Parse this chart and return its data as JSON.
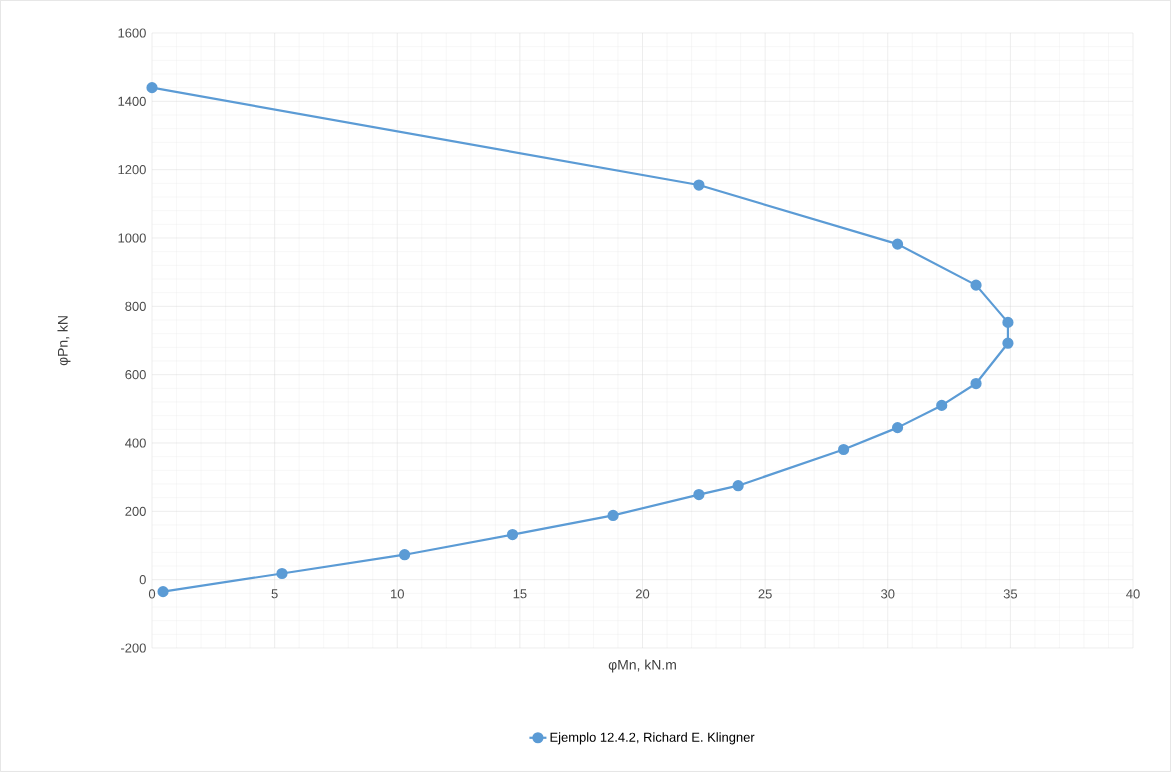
{
  "chart_data": {
    "type": "line",
    "xlabel": "φMn,  kN.m",
    "ylabel": "φPn, kN",
    "x": [
      0,
      22.3,
      30.4,
      33.6,
      34.9,
      34.9,
      33.6,
      32.2,
      30.4,
      28.2,
      23.9,
      22.3,
      18.8,
      14.7,
      10.3,
      5.3,
      0.45
    ],
    "series": [
      {
        "name": "Ejemplo 12.4.2, Richard E. Klingner",
        "color": "#5b9bd5",
        "values": [
          1440,
          1155,
          982,
          862,
          753,
          692,
          574,
          510,
          445,
          381,
          275,
          249,
          188,
          132,
          73,
          18,
          -35
        ]
      }
    ],
    "xlim": [
      0,
      40
    ],
    "ylim": [
      -200,
      1600
    ],
    "xticks": [
      0,
      5,
      10,
      15,
      20,
      25,
      30,
      35,
      40
    ],
    "yticks": [
      -200,
      0,
      200,
      400,
      600,
      800,
      1000,
      1200,
      1400,
      1600
    ],
    "grid": true,
    "legend": "bottom",
    "marker": "circle",
    "line_style": "solid"
  }
}
